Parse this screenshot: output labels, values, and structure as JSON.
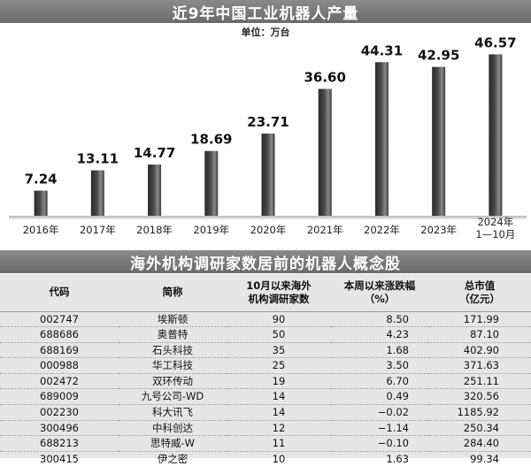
{
  "chart_title": "近9年中国工业机器人产量",
  "unit_label": "单位：万台",
  "chart_data": {
    "type": "bar",
    "categories": [
      "2016年",
      "2017年",
      "2018年",
      "2019年",
      "2020年",
      "2021年",
      "2022年",
      "2023年",
      "2024年\n1—10月"
    ],
    "values": [
      7.24,
      13.11,
      14.77,
      18.69,
      23.71,
      36.6,
      44.31,
      42.95,
      46.57
    ],
    "value_labels": [
      "7.24",
      "13.11",
      "14.77",
      "18.69",
      "23.71",
      "36.60",
      "44.31",
      "42.95",
      "46.57"
    ],
    "title": "近9年中国工业机器人产量",
    "ylim": [
      0,
      50
    ],
    "grid": false,
    "bar_color": "#4a4a4a"
  },
  "table": {
    "title": "海外机构调研家数居前的机器人概念股",
    "headers": [
      [
        "代码"
      ],
      [
        "简称"
      ],
      [
        "10月以来海外",
        "机构调研家数"
      ],
      [
        "本周以来涨跌幅",
        "（%）"
      ],
      [
        "总市值",
        "（亿元）"
      ]
    ],
    "rows": [
      [
        "002747",
        "埃斯顿",
        "90",
        "8.50",
        "171.99"
      ],
      [
        "688686",
        "奥普特",
        "50",
        "4.23",
        "87.10"
      ],
      [
        "688169",
        "石头科技",
        "35",
        "1.68",
        "402.90"
      ],
      [
        "000988",
        "华工科技",
        "25",
        "3.50",
        "371.63"
      ],
      [
        "002472",
        "双环传动",
        "19",
        "6.70",
        "251.11"
      ],
      [
        "689009",
        "九号公司-WD",
        "14",
        "0.49",
        "320.56"
      ],
      [
        "002230",
        "科大讯飞",
        "14",
        "−0.02",
        "1185.92"
      ],
      [
        "300496",
        "中科创达",
        "12",
        "−1.14",
        "250.34"
      ],
      [
        "688213",
        "思特威-W",
        "11",
        "−0.10",
        "284.40"
      ],
      [
        "300415",
        "伊之密",
        "10",
        "1.63",
        "99.34"
      ]
    ]
  }
}
